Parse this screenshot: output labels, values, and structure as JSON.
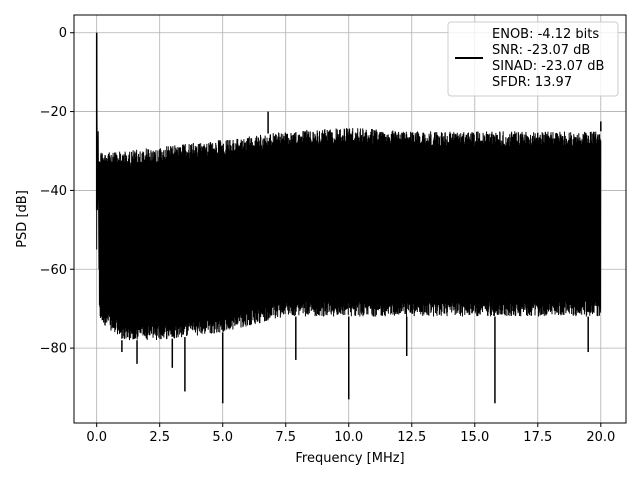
{
  "chart_data": {
    "type": "line",
    "title": "",
    "xlabel": "Frequency [MHz]",
    "ylabel": "PSD [dB]",
    "xlim": [
      -0.9,
      21.0
    ],
    "ylim": [
      -99,
      4.5
    ],
    "x_ticks": [
      0.0,
      2.5,
      5.0,
      7.5,
      10.0,
      12.5,
      15.0,
      17.5,
      20.0
    ],
    "x_tick_labels": [
      "0.0",
      "2.5",
      "5.0",
      "7.5",
      "10.0",
      "12.5",
      "15.0",
      "17.5",
      "20.0"
    ],
    "y_ticks": [
      0,
      -20,
      -40,
      -60,
      -80
    ],
    "y_tick_labels": [
      "0",
      "−20",
      "−40",
      "−60",
      "−80"
    ],
    "grid": true,
    "legend_position": "top-right",
    "series": [
      {
        "name": "ENOB: -4.12 bits\nSNR: -23.07 dB\nSINAD: -23.07 dB\nSFDR: 13.97",
        "legend_lines": [
          "ENOB: -4.12 bits",
          "SNR: -23.07 dB",
          "SINAD: -23.07 dB",
          "SFDR: 13.97"
        ],
        "color": "#000000",
        "x_range": [
          0.0,
          20.0
        ],
        "fundamental_peak": {
          "x": 0.0,
          "y": 0.0
        },
        "spurs": [
          {
            "x": 6.8,
            "y": -20.0
          },
          {
            "x": 20.0,
            "y": -22.5
          }
        ],
        "noise_envelope": {
          "x": [
            0.1,
            1.0,
            2.5,
            5.0,
            7.5,
            10.0,
            12.5,
            15.0,
            17.5,
            20.0
          ],
          "upper": [
            -30,
            -30,
            -29,
            -27,
            -25,
            -24,
            -25,
            -25,
            -25,
            -25
          ],
          "lower": [
            -73,
            -78,
            -78,
            -76,
            -72,
            -72,
            -72,
            -72,
            -72,
            -72
          ]
        },
        "notable_dips": [
          {
            "x": 1.0,
            "y": -81
          },
          {
            "x": 1.6,
            "y": -84
          },
          {
            "x": 3.0,
            "y": -85
          },
          {
            "x": 3.5,
            "y": -91
          },
          {
            "x": 5.0,
            "y": -94
          },
          {
            "x": 7.9,
            "y": -83
          },
          {
            "x": 10.0,
            "y": -93
          },
          {
            "x": 12.3,
            "y": -82
          },
          {
            "x": 15.8,
            "y": -94
          },
          {
            "x": 19.5,
            "y": -81
          }
        ]
      }
    ]
  }
}
